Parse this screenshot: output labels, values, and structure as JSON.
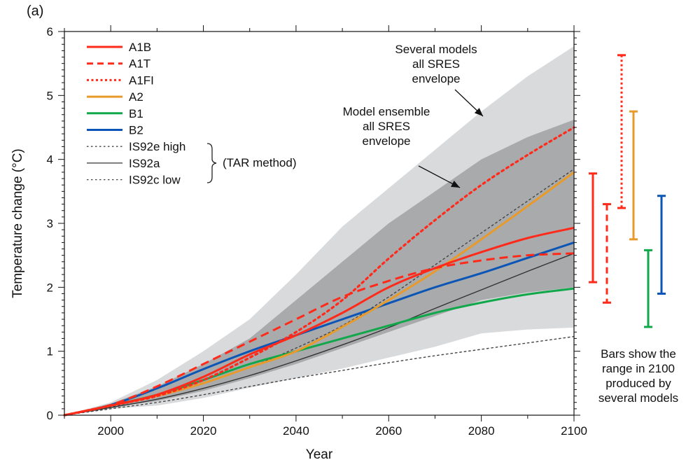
{
  "panel_label": "(a)",
  "chart_data": {
    "type": "line",
    "xlabel": "Year",
    "ylabel": "Temperature change (°C)",
    "xlim": [
      1990,
      2100
    ],
    "ylim": [
      0,
      6
    ],
    "x_ticks": [
      2000,
      2020,
      2040,
      2060,
      2080,
      2100
    ],
    "y_ticks": [
      0,
      1,
      2,
      3,
      4,
      5,
      6
    ],
    "grid": false,
    "legend_placement": "top-left",
    "x": [
      1990,
      2000,
      2010,
      2020,
      2030,
      2040,
      2050,
      2060,
      2070,
      2080,
      2090,
      2100
    ],
    "envelopes": [
      {
        "label": "Several models all SRES envelope",
        "color": "#d9dadc",
        "upper": [
          0,
          0.2,
          0.55,
          1.0,
          1.5,
          2.2,
          2.95,
          3.55,
          4.15,
          4.75,
          5.3,
          5.77
        ],
        "lower": [
          0,
          0.1,
          0.15,
          0.27,
          0.43,
          0.58,
          0.73,
          0.9,
          1.07,
          1.28,
          1.34,
          1.37
        ]
      },
      {
        "label": "Model ensemble all SRES envelope",
        "color": "#a9aaac",
        "upper": [
          0,
          0.18,
          0.45,
          0.8,
          1.2,
          1.8,
          2.4,
          3.0,
          3.5,
          4.0,
          4.35,
          4.62
        ],
        "lower": [
          0,
          0.12,
          0.22,
          0.38,
          0.58,
          0.8,
          1.05,
          1.3,
          1.55,
          1.8,
          1.92,
          2.0
        ]
      }
    ],
    "series": [
      {
        "name": "A1B",
        "color": "#ff2a1a",
        "style": "solid",
        "values": [
          0,
          0.15,
          0.32,
          0.6,
          0.95,
          1.25,
          1.6,
          2.0,
          2.3,
          2.55,
          2.77,
          2.93
        ]
      },
      {
        "name": "A1T",
        "color": "#ff2a1a",
        "style": "dashed",
        "values": [
          0,
          0.16,
          0.45,
          0.8,
          1.15,
          1.5,
          1.85,
          2.1,
          2.3,
          2.42,
          2.5,
          2.53
        ]
      },
      {
        "name": "A1FI",
        "color": "#ff2a1a",
        "style": "dotted",
        "values": [
          0,
          0.15,
          0.3,
          0.55,
          0.9,
          1.3,
          1.8,
          2.45,
          3.05,
          3.6,
          4.07,
          4.5
        ]
      },
      {
        "name": "A2",
        "color": "#e89a2a",
        "style": "solid",
        "values": [
          0,
          0.15,
          0.3,
          0.5,
          0.75,
          1.0,
          1.38,
          1.8,
          2.25,
          2.75,
          3.27,
          3.8
        ]
      },
      {
        "name": "B1",
        "color": "#10a84a",
        "style": "solid",
        "values": [
          0,
          0.15,
          0.32,
          0.55,
          0.8,
          1.0,
          1.2,
          1.4,
          1.6,
          1.76,
          1.89,
          1.98
        ]
      },
      {
        "name": "B2",
        "color": "#0a55b5",
        "style": "solid",
        "values": [
          0,
          0.16,
          0.42,
          0.72,
          1.0,
          1.25,
          1.5,
          1.75,
          2.0,
          2.22,
          2.46,
          2.7
        ]
      },
      {
        "name": "IS92e high",
        "color": "#444444",
        "style": "dotted-thin",
        "values": [
          0,
          0.13,
          0.3,
          0.5,
          0.75,
          1.05,
          1.4,
          1.85,
          2.35,
          2.85,
          3.35,
          3.85
        ]
      },
      {
        "name": "IS92a",
        "color": "#333333",
        "style": "solid-thin",
        "values": [
          0,
          0.12,
          0.25,
          0.42,
          0.62,
          0.85,
          1.1,
          1.37,
          1.67,
          1.96,
          2.25,
          2.53
        ]
      },
      {
        "name": "IS92c low",
        "color": "#444444",
        "style": "dotted-thin",
        "values": [
          0,
          0.1,
          0.2,
          0.32,
          0.45,
          0.58,
          0.7,
          0.82,
          0.93,
          1.03,
          1.13,
          1.23
        ]
      }
    ],
    "legend_group_label": "(TAR method)",
    "range_bars_2100": [
      {
        "series": "A1B",
        "color": "#ff2a1a",
        "style": "solid",
        "low": 2.08,
        "high": 3.78
      },
      {
        "series": "A1T",
        "color": "#ff2a1a",
        "style": "dashed",
        "low": 1.76,
        "high": 3.3
      },
      {
        "series": "A1FI",
        "color": "#ff2a1a",
        "style": "dotted",
        "low": 3.24,
        "high": 5.63
      },
      {
        "series": "A2",
        "color": "#e89a2a",
        "style": "solid",
        "low": 2.75,
        "high": 4.75
      },
      {
        "series": "B1",
        "color": "#10a84a",
        "style": "solid",
        "low": 1.38,
        "high": 2.58
      },
      {
        "series": "B2",
        "color": "#0a55b5",
        "style": "solid",
        "low": 1.9,
        "high": 3.43
      }
    ],
    "annotations": {
      "several_models": [
        "Several models",
        "all SRES",
        "envelope"
      ],
      "model_ensemble": [
        "Model ensemble",
        "all SRES",
        "envelope"
      ],
      "bars_note": [
        "Bars show the",
        "range in 2100",
        "produced by",
        "several models"
      ]
    }
  }
}
